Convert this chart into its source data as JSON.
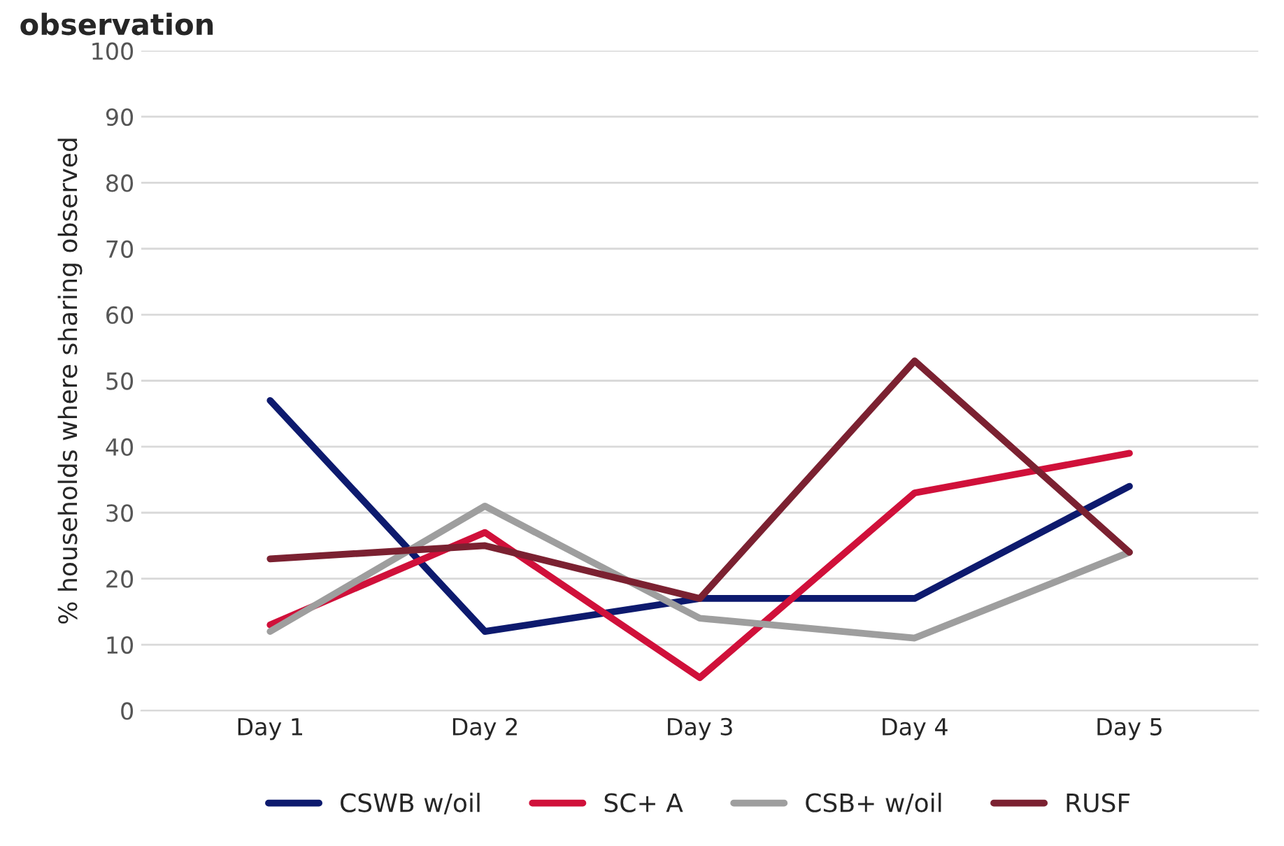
{
  "chart_data": {
    "type": "line",
    "title": "observation",
    "ylabel": "% households where sharing observed",
    "categories": [
      "Day 1",
      "Day 2",
      "Day 3",
      "Day 4",
      "Day 5"
    ],
    "series": [
      {
        "name": "CSWB w/oil",
        "color": "#0d1a6e",
        "values": [
          47,
          12,
          17,
          17,
          34
        ]
      },
      {
        "name": "SC+ A",
        "color": "#d0103a",
        "values": [
          13,
          27,
          5,
          33,
          39
        ]
      },
      {
        "name": "CSB+ w/oil",
        "color": "#9e9e9e",
        "values": [
          12,
          31,
          14,
          11,
          24
        ]
      },
      {
        "name": "RUSF",
        "color": "#7b2131",
        "values": [
          23,
          25,
          17,
          53,
          24
        ]
      }
    ],
    "ylim": [
      0,
      100
    ],
    "yticks": [
      0,
      10,
      20,
      30,
      40,
      50,
      60,
      70,
      80,
      90,
      100
    ],
    "grid": "y",
    "legend": "bottom",
    "marker": "none",
    "line_style": "solid"
  }
}
